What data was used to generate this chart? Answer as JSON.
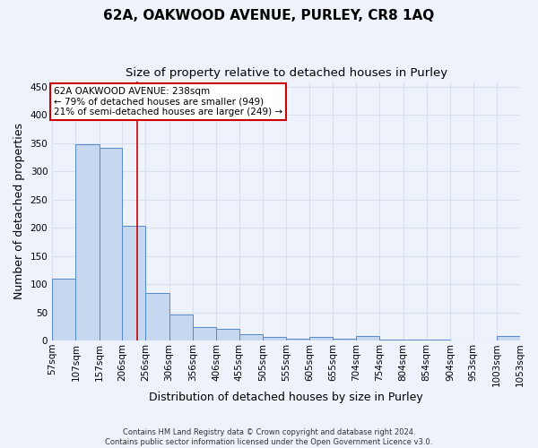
{
  "title": "62A, OAKWOOD AVENUE, PURLEY, CR8 1AQ",
  "subtitle": "Size of property relative to detached houses in Purley",
  "xlabel": "Distribution of detached houses by size in Purley",
  "ylabel": "Number of detached properties",
  "footer_line1": "Contains HM Land Registry data © Crown copyright and database right 2024.",
  "footer_line2": "Contains public sector information licensed under the Open Government Licence v3.0.",
  "bin_edges": [
    57,
    107,
    157,
    206,
    256,
    306,
    356,
    406,
    455,
    505,
    555,
    605,
    655,
    704,
    754,
    804,
    854,
    904,
    953,
    1003,
    1053
  ],
  "bin_labels": [
    "57sqm",
    "107sqm",
    "157sqm",
    "206sqm",
    "256sqm",
    "306sqm",
    "356sqm",
    "406sqm",
    "455sqm",
    "505sqm",
    "555sqm",
    "605sqm",
    "655sqm",
    "704sqm",
    "754sqm",
    "804sqm",
    "854sqm",
    "904sqm",
    "953sqm",
    "1003sqm",
    "1053sqm"
  ],
  "bar_heights": [
    110,
    348,
    341,
    203,
    85,
    46,
    24,
    21,
    11,
    7,
    4,
    6,
    4,
    8,
    1,
    1,
    1,
    0,
    0,
    8
  ],
  "bar_color": "#c5d8f0",
  "bar_edge_color": "#5588cc",
  "red_line_x": 238,
  "ylim": [
    0,
    460
  ],
  "yticks": [
    0,
    50,
    100,
    150,
    200,
    250,
    300,
    350,
    400,
    450
  ],
  "annotation_text": "62A OAKWOOD AVENUE: 238sqm\n← 79% of detached houses are smaller (949)\n21% of semi-detached houses are larger (249) →",
  "annotation_box_color": "#ffffff",
  "annotation_box_edge_color": "#cc0000",
  "background_color": "#eef2fb",
  "grid_color": "#d8dff0",
  "title_fontsize": 11,
  "subtitle_fontsize": 9.5,
  "axis_label_fontsize": 9,
  "tick_fontsize": 7.5,
  "annotation_fontsize": 7.5
}
